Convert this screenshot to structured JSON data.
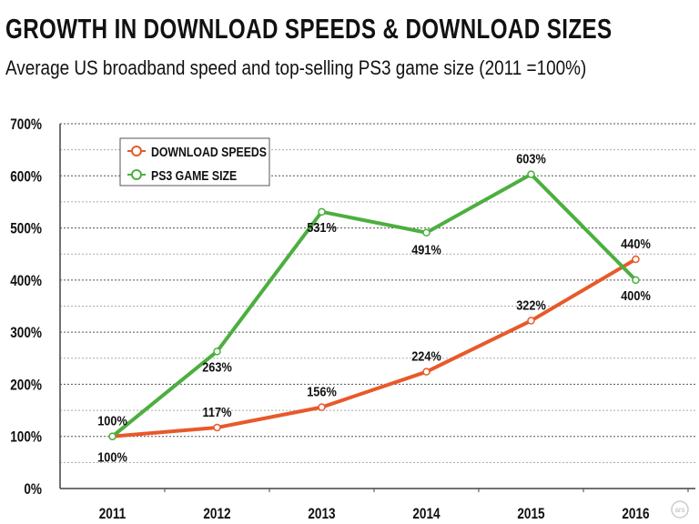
{
  "chart_data": {
    "type": "line",
    "title": "GROWTH IN DOWNLOAD SPEEDS & DOWNLOAD SIZES",
    "subtitle": "Average US broadband speed and top-selling PS3 game size (2011 =100%)",
    "categories": [
      "2011",
      "2012",
      "2013",
      "2014",
      "2015",
      "2016"
    ],
    "ylim": [
      0,
      700
    ],
    "yticks": [
      "0%",
      "100%",
      "200%",
      "300%",
      "400%",
      "500%",
      "600%",
      "700%"
    ],
    "grid": true,
    "legend_placement": "top-left",
    "series": [
      {
        "name": "DOWNLOAD SPEEDS",
        "color": "#e8592a",
        "values": [
          100,
          117,
          156,
          224,
          322,
          440
        ],
        "labels": [
          "100%",
          "117%",
          "156%",
          "224%",
          "322%",
          "440%"
        ]
      },
      {
        "name": "PS3 GAME SIZE",
        "color": "#4caf3f",
        "values": [
          100,
          263,
          531,
          491,
          603,
          400
        ],
        "labels": [
          "100%",
          "263%",
          "531%",
          "491%",
          "603%",
          "400%"
        ]
      }
    ],
    "logo": "ars"
  }
}
